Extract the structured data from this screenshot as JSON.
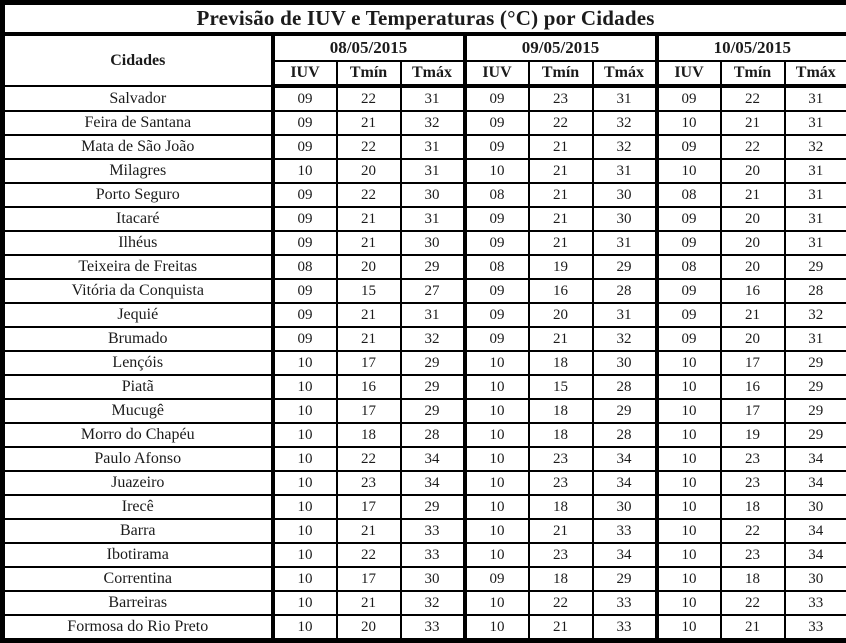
{
  "title": "Previsão de IUV e Temperaturas (°C) por Cidades",
  "colors": {
    "border": "#000000",
    "text": "#1b1b1b",
    "background": "#ffffff"
  },
  "table": {
    "city_header": "Cidades",
    "dates": [
      "08/05/2015",
      "09/05/2015",
      "10/05/2015"
    ],
    "sub_headers": [
      "IUV",
      "Tmín",
      "Tmáx"
    ],
    "rows": [
      {
        "city": "Salvador",
        "values": [
          "09",
          "22",
          "31",
          "09",
          "23",
          "31",
          "09",
          "22",
          "31"
        ]
      },
      {
        "city": "Feira de Santana",
        "values": [
          "09",
          "21",
          "32",
          "09",
          "22",
          "32",
          "10",
          "21",
          "31"
        ]
      },
      {
        "city": "Mata de São João",
        "values": [
          "09",
          "22",
          "31",
          "09",
          "21",
          "32",
          "09",
          "22",
          "32"
        ]
      },
      {
        "city": "Milagres",
        "values": [
          "10",
          "20",
          "31",
          "10",
          "21",
          "31",
          "10",
          "20",
          "31"
        ]
      },
      {
        "city": "Porto Seguro",
        "values": [
          "09",
          "22",
          "30",
          "08",
          "21",
          "30",
          "08",
          "21",
          "31"
        ]
      },
      {
        "city": "Itacaré",
        "values": [
          "09",
          "21",
          "31",
          "09",
          "21",
          "30",
          "09",
          "20",
          "31"
        ]
      },
      {
        "city": "Ilhéus",
        "values": [
          "09",
          "21",
          "30",
          "09",
          "21",
          "31",
          "09",
          "20",
          "31"
        ]
      },
      {
        "city": "Teixeira de Freitas",
        "values": [
          "08",
          "20",
          "29",
          "08",
          "19",
          "29",
          "08",
          "20",
          "29"
        ]
      },
      {
        "city": "Vitória da Conquista",
        "values": [
          "09",
          "15",
          "27",
          "09",
          "16",
          "28",
          "09",
          "16",
          "28"
        ]
      },
      {
        "city": "Jequié",
        "values": [
          "09",
          "21",
          "31",
          "09",
          "20",
          "31",
          "09",
          "21",
          "32"
        ]
      },
      {
        "city": "Brumado",
        "values": [
          "09",
          "21",
          "32",
          "09",
          "21",
          "32",
          "09",
          "20",
          "31"
        ]
      },
      {
        "city": "Lençóis",
        "values": [
          "10",
          "17",
          "29",
          "10",
          "18",
          "30",
          "10",
          "17",
          "29"
        ]
      },
      {
        "city": "Piatã",
        "values": [
          "10",
          "16",
          "29",
          "10",
          "15",
          "28",
          "10",
          "16",
          "29"
        ]
      },
      {
        "city": "Mucugê",
        "values": [
          "10",
          "17",
          "29",
          "10",
          "18",
          "29",
          "10",
          "17",
          "29"
        ]
      },
      {
        "city": "Morro do Chapéu",
        "values": [
          "10",
          "18",
          "28",
          "10",
          "18",
          "28",
          "10",
          "19",
          "29"
        ]
      },
      {
        "city": "Paulo Afonso",
        "values": [
          "10",
          "22",
          "34",
          "10",
          "23",
          "34",
          "10",
          "23",
          "34"
        ]
      },
      {
        "city": "Juazeiro",
        "values": [
          "10",
          "23",
          "34",
          "10",
          "23",
          "34",
          "10",
          "23",
          "34"
        ]
      },
      {
        "city": "Irecê",
        "values": [
          "10",
          "17",
          "29",
          "10",
          "18",
          "30",
          "10",
          "18",
          "30"
        ]
      },
      {
        "city": "Barra",
        "values": [
          "10",
          "21",
          "33",
          "10",
          "21",
          "33",
          "10",
          "22",
          "34"
        ]
      },
      {
        "city": "Ibotirama",
        "values": [
          "10",
          "22",
          "33",
          "10",
          "23",
          "34",
          "10",
          "23",
          "34"
        ]
      },
      {
        "city": "Correntina",
        "values": [
          "10",
          "17",
          "30",
          "09",
          "18",
          "29",
          "10",
          "18",
          "30"
        ]
      },
      {
        "city": "Barreiras",
        "values": [
          "10",
          "21",
          "32",
          "10",
          "22",
          "33",
          "10",
          "22",
          "33"
        ]
      },
      {
        "city": "Formosa do Rio Preto",
        "values": [
          "10",
          "20",
          "33",
          "10",
          "21",
          "33",
          "10",
          "21",
          "33"
        ]
      }
    ]
  }
}
